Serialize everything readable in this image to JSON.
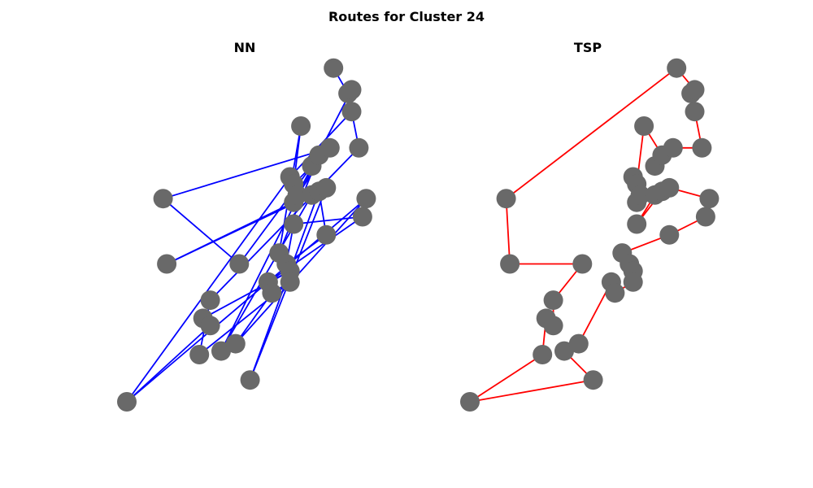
{
  "title": "Routes for Cluster 24",
  "colors": {
    "nn": "#0000ff",
    "tsp": "#ff0000",
    "node": "#696969"
  },
  "chart_data": [
    {
      "type": "scatter",
      "title": "NN",
      "points": [
        [
          -0.0,
          0.0
        ],
        [
          0.1,
          0.56
        ],
        [
          0.11,
          0.38
        ],
        [
          0.2,
          0.13
        ],
        [
          0.21,
          0.23
        ],
        [
          0.23,
          0.21
        ],
        [
          0.23,
          0.28
        ],
        [
          0.26,
          0.14
        ],
        [
          0.3,
          0.16
        ],
        [
          0.31,
          0.38
        ],
        [
          0.34,
          0.06
        ],
        [
          0.39,
          0.33
        ],
        [
          0.4,
          0.3
        ],
        [
          0.42,
          0.41
        ],
        [
          0.44,
          0.38
        ],
        [
          0.45,
          0.36
        ],
        [
          0.45,
          0.33
        ],
        [
          0.45,
          0.62
        ],
        [
          0.46,
          0.6
        ],
        [
          0.46,
          0.55
        ],
        [
          0.46,
          0.49
        ],
        [
          0.47,
          0.57
        ],
        [
          0.48,
          0.76
        ],
        [
          0.51,
          0.65
        ],
        [
          0.51,
          0.57
        ],
        [
          0.53,
          0.58
        ],
        [
          0.53,
          0.68
        ],
        [
          0.55,
          0.59
        ],
        [
          0.55,
          0.46
        ],
        [
          0.56,
          0.7
        ],
        [
          0.57,
          0.92
        ],
        [
          0.61,
          0.85
        ],
        [
          0.62,
          0.8
        ],
        [
          0.62,
          0.86
        ],
        [
          0.64,
          0.7
        ],
        [
          0.65,
          0.51
        ],
        [
          0.66,
          0.56
        ]
      ],
      "route": [
        30,
        31,
        34,
        6,
        3,
        16,
        12,
        8,
        36,
        0,
        5,
        4,
        15,
        11,
        35,
        20,
        14,
        28,
        25,
        10,
        27,
        19,
        2,
        24,
        7,
        26,
        13,
        22,
        18,
        23,
        9,
        1,
        29,
        21,
        33,
        32,
        17,
        0
      ]
    },
    {
      "type": "scatter",
      "title": "TSP",
      "points": [
        [
          -0.0,
          0.0
        ],
        [
          0.1,
          0.56
        ],
        [
          0.11,
          0.38
        ],
        [
          0.2,
          0.13
        ],
        [
          0.21,
          0.23
        ],
        [
          0.23,
          0.21
        ],
        [
          0.23,
          0.28
        ],
        [
          0.26,
          0.14
        ],
        [
          0.3,
          0.16
        ],
        [
          0.31,
          0.38
        ],
        [
          0.34,
          0.06
        ],
        [
          0.39,
          0.33
        ],
        [
          0.4,
          0.3
        ],
        [
          0.42,
          0.41
        ],
        [
          0.44,
          0.38
        ],
        [
          0.45,
          0.36
        ],
        [
          0.45,
          0.33
        ],
        [
          0.45,
          0.62
        ],
        [
          0.46,
          0.6
        ],
        [
          0.46,
          0.55
        ],
        [
          0.46,
          0.49
        ],
        [
          0.47,
          0.57
        ],
        [
          0.48,
          0.76
        ],
        [
          0.51,
          0.65
        ],
        [
          0.51,
          0.57
        ],
        [
          0.53,
          0.58
        ],
        [
          0.53,
          0.68
        ],
        [
          0.55,
          0.59
        ],
        [
          0.55,
          0.46
        ],
        [
          0.56,
          0.7
        ],
        [
          0.57,
          0.92
        ],
        [
          0.61,
          0.85
        ],
        [
          0.62,
          0.8
        ],
        [
          0.62,
          0.86
        ],
        [
          0.64,
          0.7
        ],
        [
          0.65,
          0.51
        ],
        [
          0.66,
          0.56
        ]
      ],
      "route": [
        0,
        3,
        4,
        5,
        6,
        9,
        2,
        1,
        30,
        33,
        31,
        32,
        34,
        29,
        26,
        22,
        18,
        17,
        19,
        21,
        24,
        20,
        25,
        27,
        36,
        35,
        28,
        13,
        14,
        15,
        16,
        12,
        11,
        8,
        7,
        10,
        0
      ]
    }
  ]
}
